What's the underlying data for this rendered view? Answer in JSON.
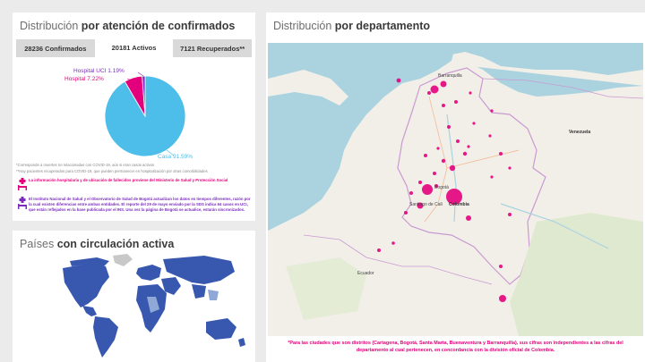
{
  "left_top": {
    "title_normal": "Distribución",
    "title_bold": "por atención de confirmados",
    "tabs": [
      {
        "label": "28236 Confirmados",
        "active": false
      },
      {
        "label": "20181 Activos",
        "active": true
      },
      {
        "label": "7121 Recuperados**",
        "active": false
      }
    ],
    "pie": {
      "label_uci": "Hospital UCI 1.19%",
      "label_hospital": "Hospital 7.22%",
      "label_casa": "Casa 91.59%"
    },
    "footnote_1": "*Corresponde a muertes no relacionadas con COVID-19, aún si eran casos activos",
    "footnote_2": "**Hay pacientes recuperados para COVID-19, que pueden permanecer en hospitalización por otras comorbilidades",
    "info_1": "La información hospitalaria y de ubicación de fallecidos proviene del Ministerio de Salud y Protección Social",
    "info_2": "El Instituto Nacional de Salud y el Observatorio de Salud de Bogotá actualizan los datos en tiempos diferentes, razón por la cual existen diferencias entre ambas entidades. El reporte del 29 de mayo enviado por la SDS indica 64 casos en UCI, que están reflejados en la base publicada por el INS. Una vez la página de Bogotá se actualice, estarán sincronizados."
  },
  "left_bottom": {
    "title_normal": "Países",
    "title_bold": "con circulación activa"
  },
  "right": {
    "title_normal": "Distribución",
    "title_bold": "por departamento",
    "map_labels": {
      "barranquilla": "Barranquilla",
      "venezuela": "Venezuela",
      "colombia": "Colombia",
      "bogota": "Bogotá",
      "santiago_de_cali": "Santiago de Cali",
      "ecuador": "Ecuador"
    },
    "note": "*Para las ciudades que son distritos (Cartagena, Bogotá, Santa Marta, Buenaventura y Barranquilla), sus cifras son independientes a las cifras del departamento al cual pertenecen, en concordancia con la división oficial de Colombia."
  },
  "chart_data": {
    "type": "pie",
    "slices": [
      {
        "label": "Casa",
        "value": 91.59,
        "color": "#4dbde9"
      },
      {
        "label": "Hospital",
        "value": 7.22,
        "color": "#e4007c"
      },
      {
        "label": "Hospital UCI",
        "value": 1.19,
        "color": "#7b2cbf"
      }
    ]
  },
  "colors": {
    "accent_pink": "#e4007c",
    "accent_purple": "#7b2cbf",
    "pie_blue": "#4dbde9",
    "world_blue": "#3858b0"
  }
}
